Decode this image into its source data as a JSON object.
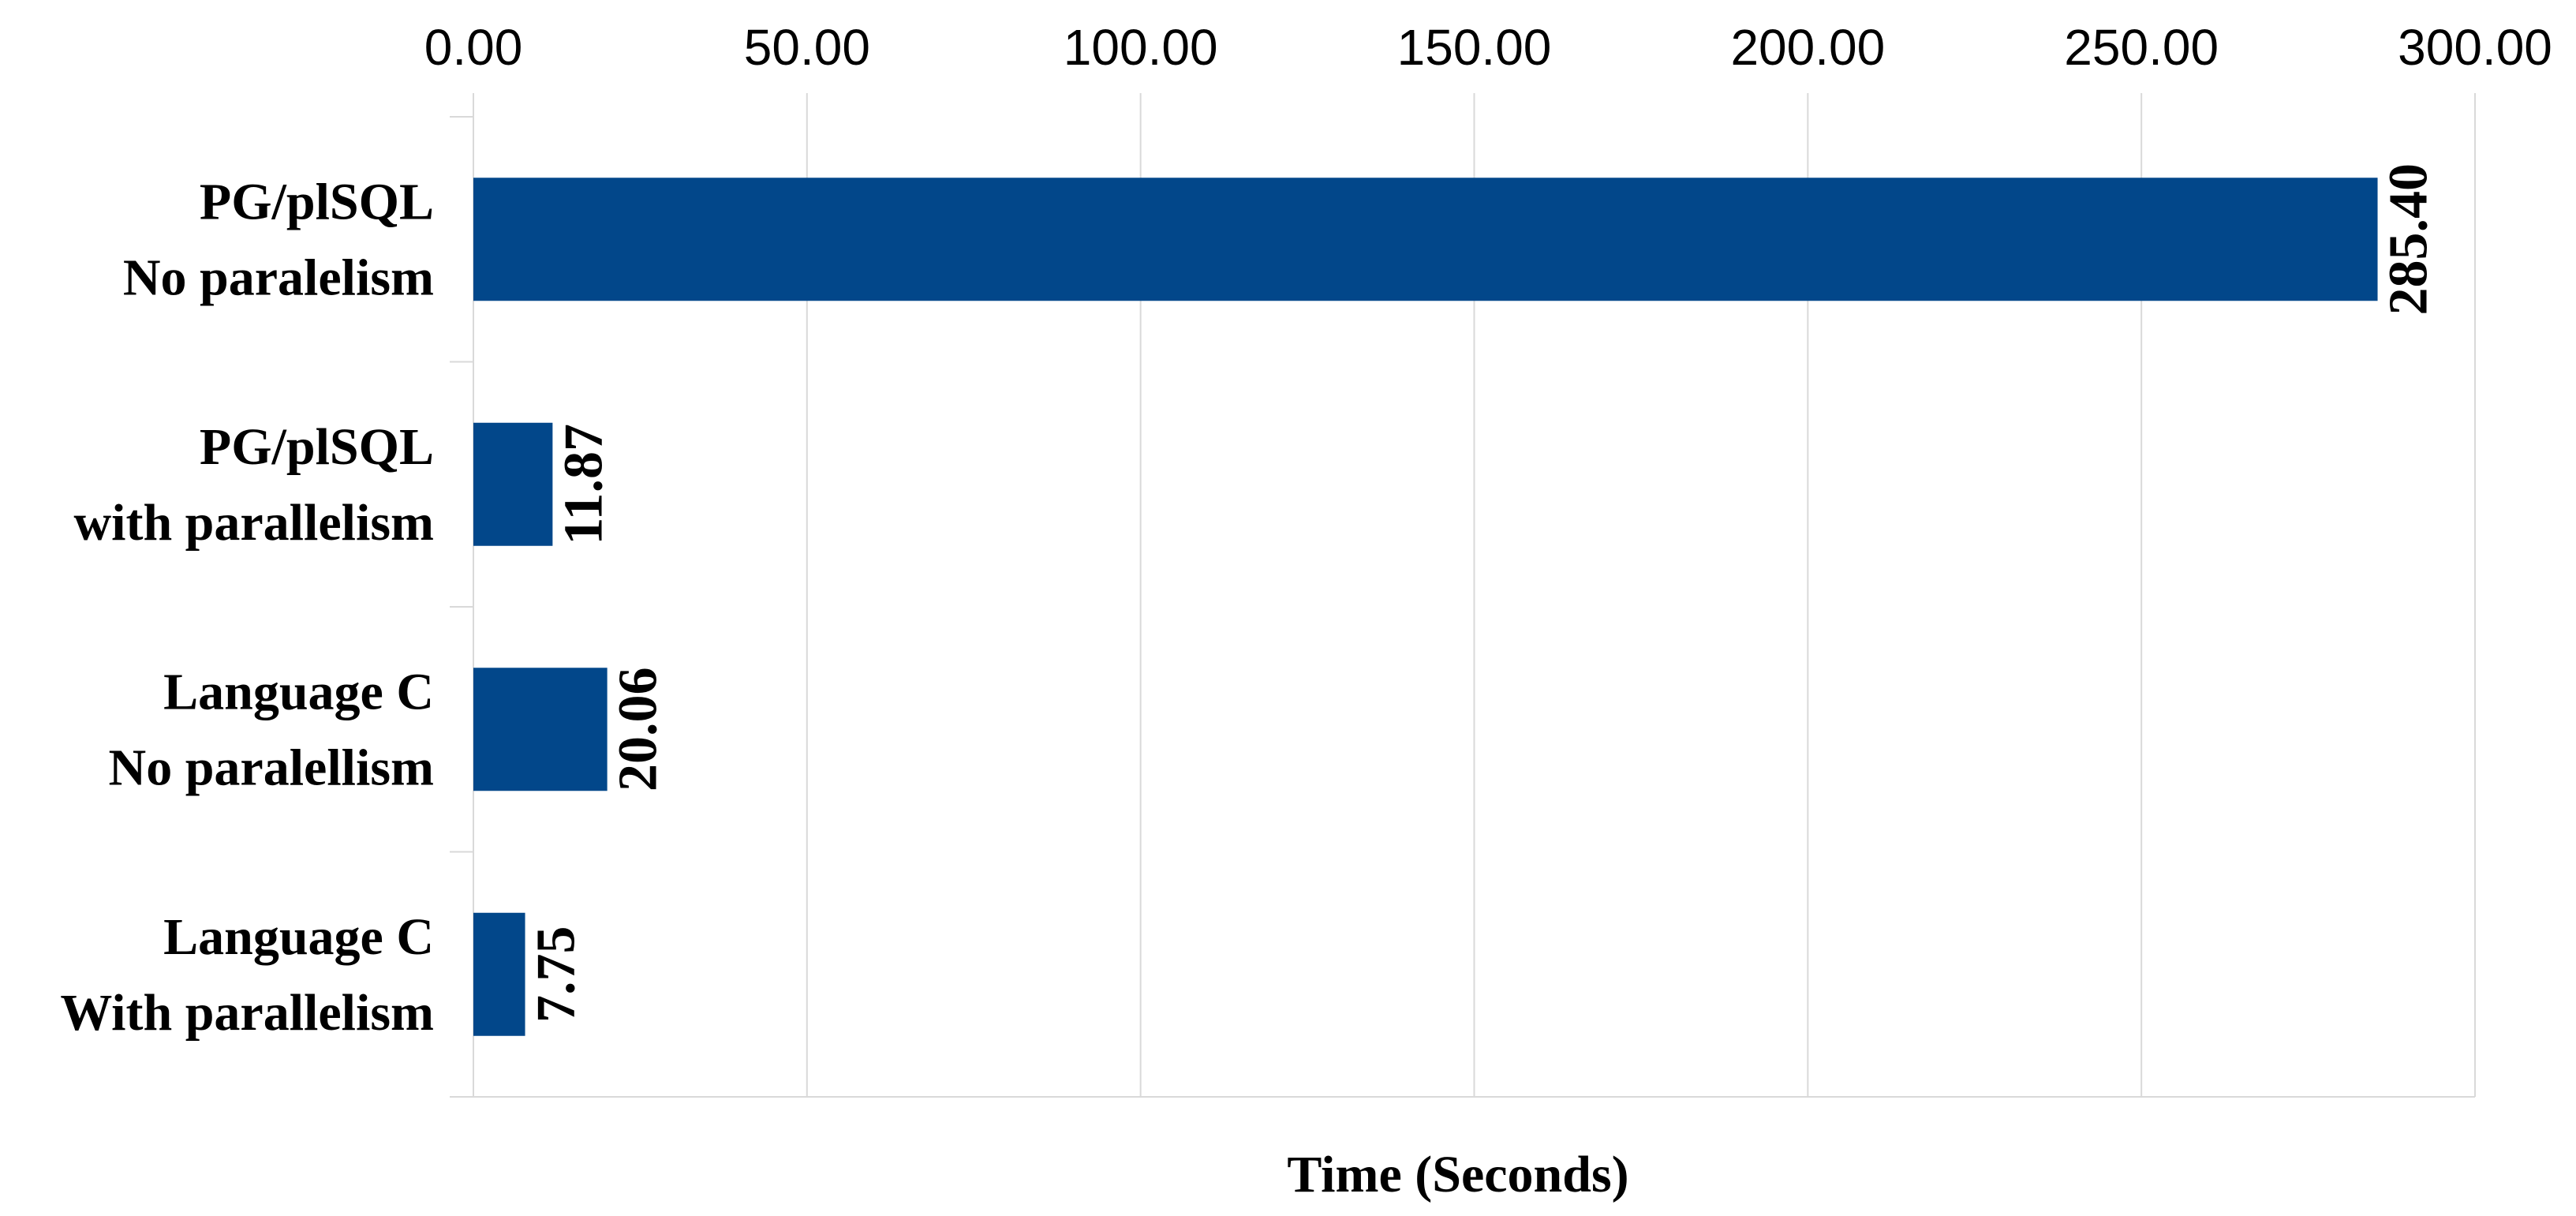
{
  "chart_data": {
    "type": "bar",
    "orientation": "horizontal",
    "categories": [
      [
        "PG/plSQL",
        "No paralelism"
      ],
      [
        "PG/plSQL",
        "with parallelism"
      ],
      [
        "Language C",
        "No paralellism"
      ],
      [
        "Language C",
        "With parallelism"
      ]
    ],
    "values": [
      285.4,
      11.87,
      20.06,
      7.75
    ],
    "data_labels": [
      "285.40",
      "11.87",
      "20.06",
      "7.75"
    ],
    "xlabel": "Time (Seconds)",
    "ylabel": "",
    "title": "",
    "xlim": [
      0,
      300
    ],
    "x_ticks": [
      "0.00",
      "50.00",
      "100.00",
      "150.00",
      "200.00",
      "250.00",
      "300.00"
    ],
    "x_axis_position": "top",
    "grid": "vertical",
    "legend": "none",
    "bar_color": "#02478a"
  }
}
